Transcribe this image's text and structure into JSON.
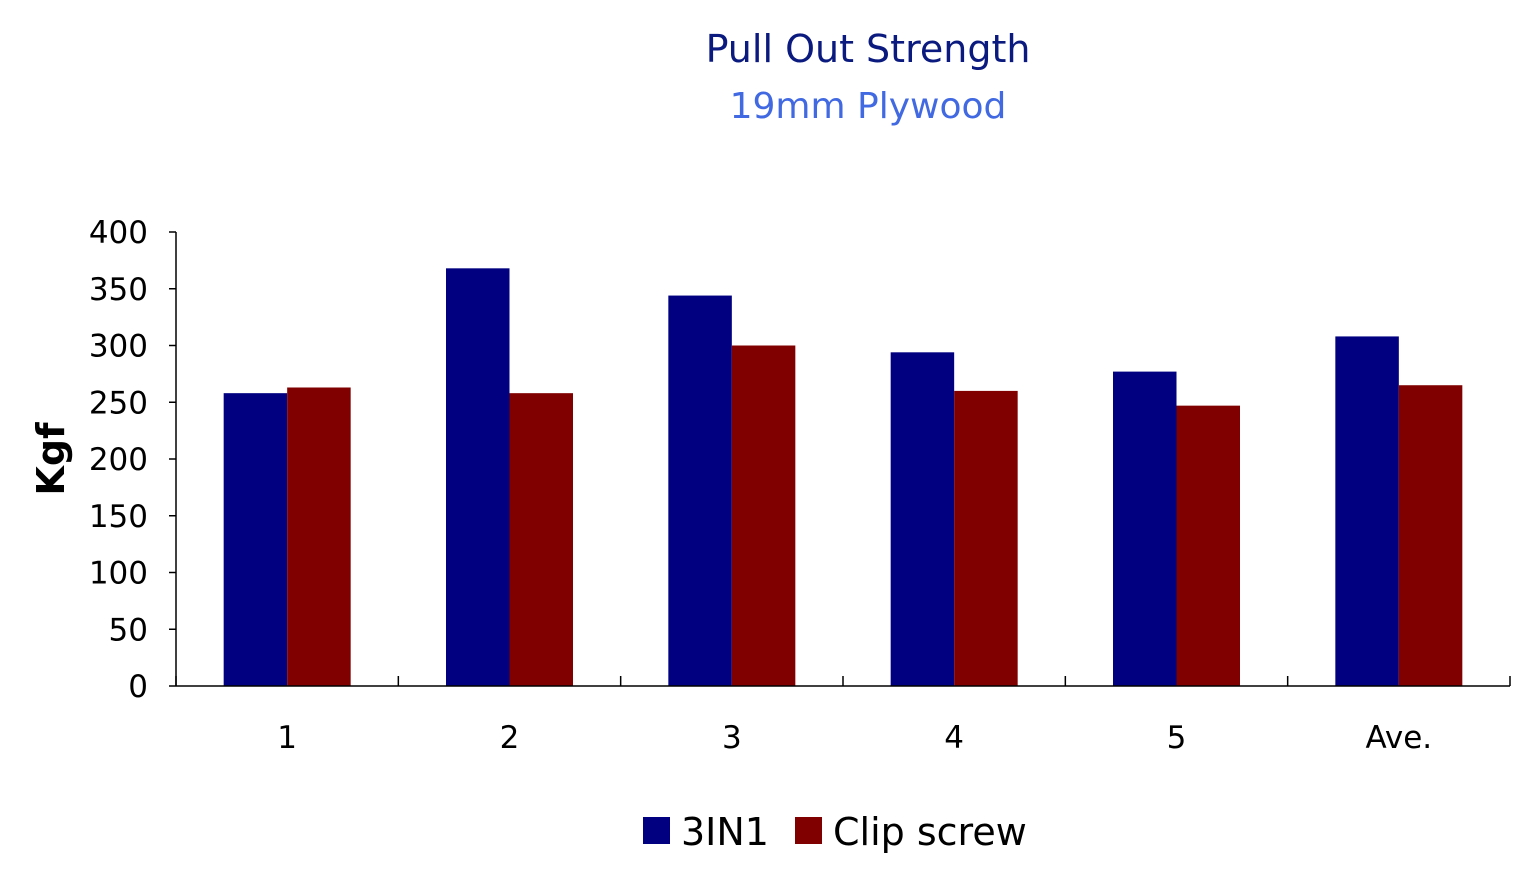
{
  "chart_data": {
    "type": "bar",
    "title": "Pull Out Strength",
    "subtitle": "19mm Plywood",
    "xlabel": "",
    "ylabel": "Kgf",
    "categories": [
      "1",
      "2",
      "3",
      "4",
      "5",
      "Ave."
    ],
    "series": [
      {
        "name": "3IN1",
        "color": "#000080",
        "values": [
          258,
          368,
          344,
          294,
          277,
          308
        ]
      },
      {
        "name": "Clip screw",
        "color": "#800000",
        "values": [
          263,
          258,
          300,
          260,
          247,
          265
        ]
      }
    ],
    "ylim": [
      0,
      400
    ],
    "yticks": [
      0,
      50,
      100,
      150,
      200,
      250,
      300,
      350,
      400
    ],
    "grid": false,
    "legend_position": "bottom",
    "colors": {
      "title": "#0a1a7e",
      "subtitle": "#4169e1",
      "axis": "#000000"
    }
  }
}
